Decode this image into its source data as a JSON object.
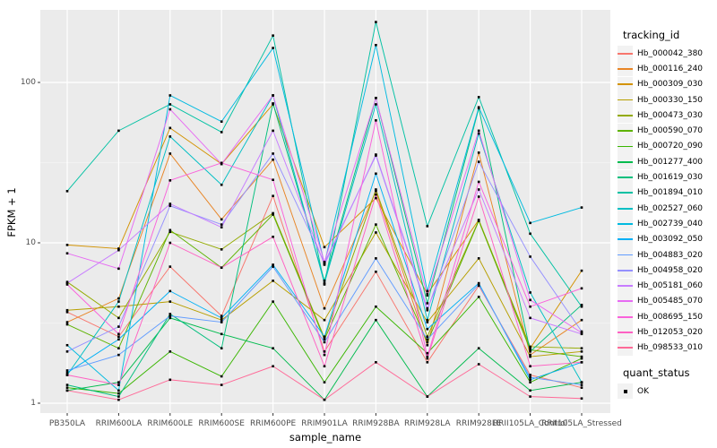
{
  "chart_data": {
    "type": "line",
    "title": "",
    "xlabel": "sample_name",
    "ylabel": "FPKM + 1",
    "y_scale": "log10",
    "y_ticks": [
      1,
      10,
      100
    ],
    "ylim": [
      1,
      290
    ],
    "grid": "on",
    "legend_position": "right",
    "legend_title": "tracking_id",
    "point_legend": {
      "title": "quant_status",
      "label": "OK"
    },
    "x_categories": [
      "PB350LA",
      "RRIM600LA",
      "RRIM600LE",
      "RRIM600SE",
      "RRIM600PE",
      "RRIM901LA",
      "RRIM928BA",
      "RRIM928LA",
      "RRIM928LE",
      "RRII105LA_Control",
      "RRII105LA_Stressed"
    ],
    "series": [
      {
        "name": "Hb_000042_380",
        "color": "#F8766D",
        "values": [
          3.7,
          2.6,
          7.1,
          3.5,
          19.6,
          2.1,
          6.6,
          1.8,
          5.4,
          1.5,
          1.25
        ]
      },
      {
        "name": "Hb_000116_240",
        "color": "#E88526",
        "values": [
          3.2,
          4.5,
          36,
          14,
          33,
          3.9,
          21,
          2.3,
          36.5,
          2.0,
          3.3
        ]
      },
      {
        "name": "Hb_000309_030",
        "color": "#D39200",
        "values": [
          9.7,
          9.2,
          52,
          31,
          73,
          9.4,
          19,
          4.8,
          13.9,
          2.2,
          6.7
        ]
      },
      {
        "name": "Hb_000330_150",
        "color": "#B79F00",
        "values": [
          3.8,
          4.0,
          4.3,
          3.3,
          5.8,
          3.3,
          11.6,
          3.2,
          8.0,
          1.95,
          2.1
        ]
      },
      {
        "name": "Hb_000473_030",
        "color": "#93AA00",
        "values": [
          5.7,
          3.4,
          11.7,
          9.1,
          15.3,
          2.55,
          21.5,
          2.6,
          13.8,
          2.25,
          2.2
        ]
      },
      {
        "name": "Hb_000590_070",
        "color": "#5EB300",
        "values": [
          3.1,
          2.2,
          12,
          7.0,
          15,
          2.5,
          13,
          2.4,
          13.7,
          2.15,
          1.95
        ]
      },
      {
        "name": "Hb_000720_090",
        "color": "#39B600",
        "values": [
          1.25,
          1.15,
          2.1,
          1.47,
          4.3,
          1.35,
          4.0,
          2.05,
          4.6,
          1.35,
          1.9
        ]
      },
      {
        "name": "Hb_001277_400",
        "color": "#00BB4E",
        "values": [
          1.2,
          1.35,
          3.4,
          2.7,
          2.2,
          1.05,
          3.3,
          1.1,
          2.2,
          1.2,
          1.35
        ]
      },
      {
        "name": "Hb_001619_030",
        "color": "#00BF7D",
        "values": [
          1.3,
          1.1,
          3.6,
          2.2,
          74,
          5.8,
          80,
          4.2,
          69,
          2.1,
          4.1
        ]
      },
      {
        "name": "Hb_001894_010",
        "color": "#00C1A3",
        "values": [
          21,
          50,
          73,
          49,
          196,
          5.5,
          238,
          12.7,
          81,
          11.4,
          4.0
        ]
      },
      {
        "name": "Hb_002527_060",
        "color": "#00BFC4",
        "values": [
          1.5,
          4.3,
          46,
          23,
          83,
          5.6,
          73,
          3.3,
          48,
          4.9,
          1.35
        ]
      },
      {
        "name": "Hb_002739_040",
        "color": "#00BAE0",
        "values": [
          2.3,
          1.2,
          83,
          57,
          164,
          7.4,
          171,
          5.0,
          70,
          13.3,
          16.6
        ]
      },
      {
        "name": "Hb_003092_050",
        "color": "#00B0F6",
        "values": [
          1.55,
          2.5,
          5.0,
          3.4,
          7.3,
          2.6,
          27,
          2.9,
          5.6,
          1.4,
          1.8
        ]
      },
      {
        "name": "Hb_004883_020",
        "color": "#619CFF",
        "values": [
          1.6,
          2.0,
          3.5,
          3.2,
          7.1,
          2.4,
          8.0,
          2.5,
          5.5,
          1.45,
          1.3
        ]
      },
      {
        "name": "Hb_004958_020",
        "color": "#9590FF",
        "values": [
          2.1,
          3.0,
          17,
          13,
          36,
          7.5,
          35,
          3.8,
          32,
          8.2,
          2.8
        ]
      },
      {
        "name": "Hb_005181_060",
        "color": "#C77CFF",
        "values": [
          5.6,
          9.0,
          17.5,
          12.5,
          50,
          7.3,
          35.5,
          3.9,
          21.5,
          3.4,
          2.7
        ]
      },
      {
        "name": "Hb_005485_070",
        "color": "#E76BF3",
        "values": [
          8.6,
          6.9,
          68,
          31,
          83,
          7.6,
          80,
          4.7,
          50,
          4.4,
          2.75
        ]
      },
      {
        "name": "Hb_008695_150",
        "color": "#FA62DB",
        "values": [
          5.5,
          2.7,
          24.5,
          31.5,
          24.7,
          2.0,
          58,
          1.95,
          24,
          4.0,
          5.2
        ]
      },
      {
        "name": "Hb_012053_020",
        "color": "#FF61C3",
        "values": [
          1.5,
          1.3,
          10,
          7.0,
          10.9,
          1.7,
          20,
          1.9,
          19.4,
          1.7,
          1.8
        ]
      },
      {
        "name": "Hb_098533_010",
        "color": "#FF6A98",
        "values": [
          1.2,
          1.05,
          1.4,
          1.3,
          1.7,
          1.05,
          1.8,
          1.1,
          1.75,
          1.1,
          1.07
        ]
      }
    ]
  },
  "colors": {
    "panel_bg": "#EBEBEB",
    "grid_major": "#FFFFFF",
    "grid_minor": "#F5F5F5",
    "point": "#000000",
    "tick_mark": "#333333",
    "tick_text": "#4D4D4D",
    "legend_key_bg": "#F2F2F2"
  }
}
